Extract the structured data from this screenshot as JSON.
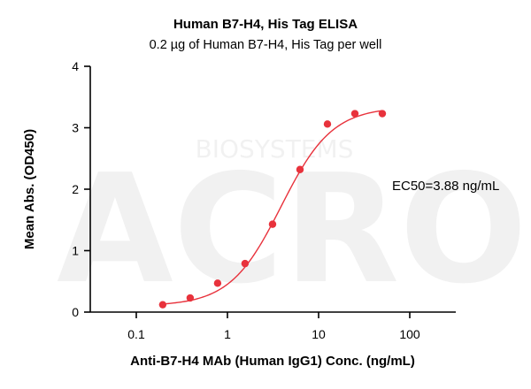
{
  "chart_data": {
    "type": "scatter",
    "title": "Human B7-H4, His Tag ELISA",
    "subtitle": "0.2 µg of Human B7-H4, His Tag per well",
    "xlabel": "Anti-B7-H4 MAb (Human IgG1) Conc. (ng/mL)",
    "ylabel": "Mean Abs. (OD450)",
    "x_scale": "log",
    "xlim": [
      0.1,
      100
    ],
    "ylim": [
      0,
      4
    ],
    "x_ticks": [
      0.1,
      1,
      10,
      100
    ],
    "x_tick_labels": [
      "0.1",
      "1",
      "10",
      "100"
    ],
    "y_ticks": [
      0,
      1,
      2,
      3,
      4
    ],
    "y_tick_labels": [
      "0",
      "1",
      "2",
      "3",
      "4"
    ],
    "grid": false,
    "series": [
      {
        "x": [
          0.195,
          0.39,
          0.78,
          1.56,
          3.125,
          6.25,
          12.5,
          25,
          50
        ],
        "y": [
          0.12,
          0.23,
          0.47,
          0.79,
          1.43,
          2.32,
          3.06,
          3.23,
          3.23
        ],
        "color": "#e8323c",
        "fit": "4PL",
        "fit_params": {
          "bottom": 0.1,
          "top": 3.34,
          "ec50": 3.88,
          "hill": 1.55
        }
      }
    ],
    "annotations": [
      {
        "text": "EC50=3.88 ng/mL"
      }
    ],
    "watermark": {
      "logo_text": "ACRO",
      "brand_text": "BIOSYSTEMS"
    }
  }
}
